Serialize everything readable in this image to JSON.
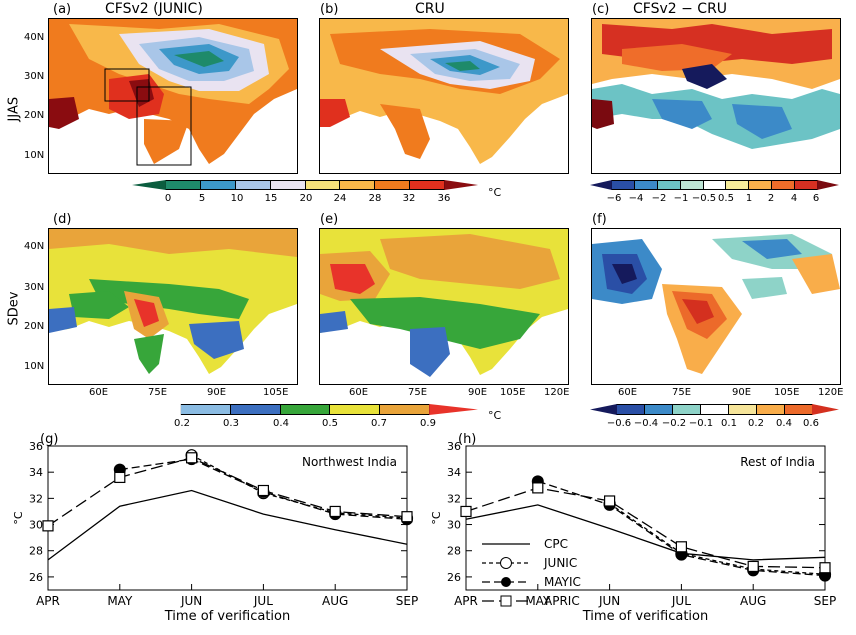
{
  "figure": {
    "row_labels": [
      "JJAS",
      "SDev"
    ],
    "panels": {
      "a": {
        "label": "(a)",
        "title": "CFSv2 (JUNIC)"
      },
      "b": {
        "label": "(b)",
        "title": "CRU"
      },
      "c": {
        "label": "(c)",
        "title": "CFSv2 − CRU"
      },
      "d": {
        "label": "(d)",
        "title": ""
      },
      "e": {
        "label": "(e)",
        "title": ""
      },
      "f": {
        "label": "(f)",
        "title": ""
      }
    },
    "lat_ticks": [
      "40N",
      "30N",
      "20N",
      "10N"
    ],
    "lon_ticks": [
      "60E",
      "75E",
      "90E",
      "105E",
      "120E"
    ],
    "colorbars": {
      "mean": {
        "labels": [
          "0",
          "5",
          "10",
          "15",
          "20",
          "24",
          "28",
          "32",
          "36"
        ],
        "unit": "°C",
        "colors": [
          "#0b5d3f",
          "#1e8a6a",
          "#3d98c9",
          "#a9c6e8",
          "#e9e3f1",
          "#f6e07a",
          "#f8b84a",
          "#f07b1e",
          "#e0301e",
          "#8a0c10"
        ]
      },
      "diff": {
        "labels": [
          "−6",
          "−4",
          "−2",
          "−1",
          "−0.5",
          "0.5",
          "1",
          "2",
          "4",
          "6"
        ],
        "colors": [
          "#151a5c",
          "#2a4fa6",
          "#3c8ac8",
          "#6cc3c5",
          "#bde5d5",
          "#ffffff",
          "#f7ec9a",
          "#f9b04c",
          "#ef6d2a",
          "#d63022",
          "#7a0a10"
        ]
      },
      "sd": {
        "labels": [
          "0.2",
          "0.3",
          "0.4",
          "0.5",
          "0.7",
          "0.9"
        ],
        "unit": "°C",
        "colors": [
          "#ffffff",
          "#8bbce3",
          "#3c6fc0",
          "#37a63a",
          "#e8e23a",
          "#e9a43a",
          "#e8332a"
        ]
      },
      "sddiff": {
        "labels": [
          "−0.6",
          "−0.4",
          "−0.2",
          "−0.1",
          "0.1",
          "0.2",
          "0.4",
          "0.6"
        ],
        "colors": [
          "#151a5c",
          "#2a4fa6",
          "#3c8ac8",
          "#8ed3c8",
          "#ffffff",
          "#f6e59a",
          "#f9ad4a",
          "#ec6a2a",
          "#d4301f"
        ]
      }
    }
  },
  "chart_data": [
    {
      "type": "line",
      "panel": "(g)",
      "annotation": "Northwest India",
      "categories": [
        "APR",
        "MAY",
        "JUN",
        "JUL",
        "AUG",
        "SEP"
      ],
      "xlabel": "Time of verification",
      "ylabel": "°C",
      "ylim": [
        25,
        36
      ],
      "yticks": [
        26,
        28,
        30,
        32,
        34,
        36
      ],
      "series": [
        {
          "name": "CPC",
          "values": [
            27.3,
            31.4,
            32.6,
            30.8,
            29.6,
            28.5
          ]
        },
        {
          "name": "JUNIC",
          "values": [
            null,
            null,
            35.3,
            32.4,
            30.9,
            30.5
          ]
        },
        {
          "name": "MAYIC",
          "values": [
            null,
            34.2,
            35.0,
            32.5,
            30.8,
            30.4
          ]
        },
        {
          "name": "APRIC",
          "values": [
            29.9,
            33.6,
            35.1,
            32.6,
            31.0,
            30.6
          ]
        }
      ]
    },
    {
      "type": "line",
      "panel": "(h)",
      "annotation": "Rest of India",
      "categories": [
        "APR",
        "MAY",
        "JUN",
        "JUL",
        "AUG",
        "SEP"
      ],
      "xlabel": "Time of verification",
      "ylabel": "°C",
      "ylim": [
        25,
        36
      ],
      "yticks": [
        26,
        28,
        30,
        32,
        34,
        36
      ],
      "legend": [
        "CPC",
        "JUNIC",
        "MAYIC",
        "APRIC"
      ],
      "series": [
        {
          "name": "CPC",
          "values": [
            30.4,
            31.5,
            29.7,
            27.8,
            27.3,
            27.5
          ]
        },
        {
          "name": "JUNIC",
          "values": [
            null,
            null,
            31.6,
            27.8,
            26.6,
            26.2
          ]
        },
        {
          "name": "MAYIC",
          "values": [
            null,
            33.3,
            31.5,
            27.7,
            26.5,
            26.1
          ]
        },
        {
          "name": "APRIC",
          "values": [
            31.0,
            32.8,
            31.8,
            28.3,
            26.8,
            26.7
          ]
        }
      ]
    }
  ]
}
